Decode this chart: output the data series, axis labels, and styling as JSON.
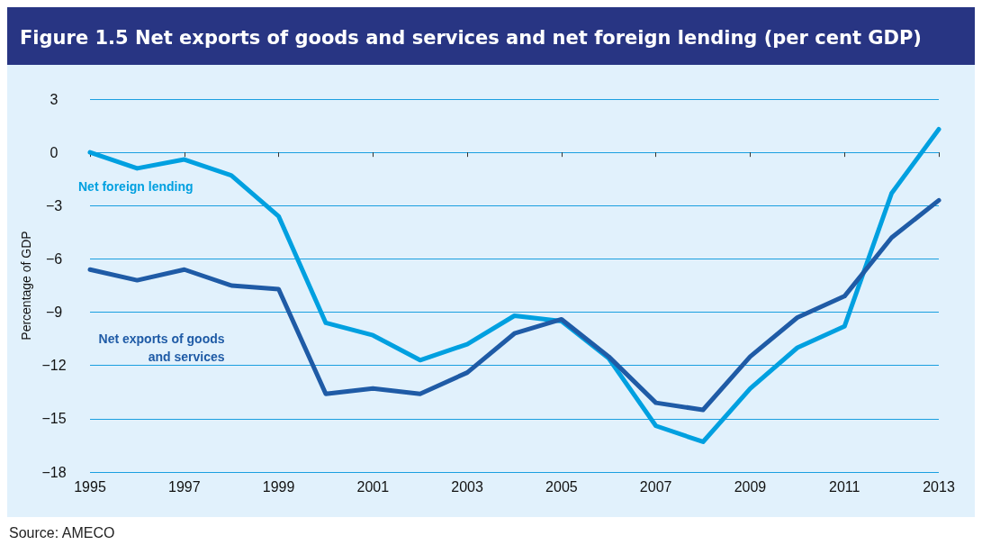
{
  "chart_data": {
    "type": "line",
    "title": "Figure 1.5  Net exports of goods and services and net foreign lending (per cent GDP)",
    "ylabel": "Percentage of GDP",
    "x": [
      1995,
      1996,
      1997,
      1998,
      1999,
      2000,
      2001,
      2002,
      2003,
      2004,
      2005,
      2006,
      2007,
      2008,
      2009,
      2010,
      2011,
      2012,
      2013
    ],
    "series": [
      {
        "name": "Net foreign lending",
        "color": "#00a0e0",
        "values": [
          0,
          -0.9,
          -0.4,
          -1.3,
          -3.6,
          -9.6,
          -10.3,
          -11.7,
          -10.8,
          -9.2,
          -9.5,
          -11.6,
          -15.4,
          -16.3,
          -13.3,
          -11.0,
          -9.8,
          -2.3,
          1.3
        ]
      },
      {
        "name": "Net exports of goods and services",
        "color": "#1f5ba6",
        "values": [
          -6.6,
          -7.2,
          -6.6,
          -7.5,
          -7.7,
          -13.6,
          -13.3,
          -13.6,
          -12.4,
          -10.2,
          -9.4,
          -11.5,
          -14.1,
          -14.5,
          -11.5,
          -9.3,
          -8.1,
          -4.8,
          -2.7
        ]
      }
    ],
    "xlim": [
      1995,
      2013
    ],
    "xticks": [
      1995,
      1997,
      1999,
      2001,
      2003,
      2005,
      2007,
      2009,
      2011,
      2013
    ],
    "ylim": [
      -18,
      3
    ],
    "yticks": [
      -18,
      -15,
      -12,
      -9,
      -6,
      -3,
      0,
      3
    ],
    "grid": "y",
    "legend": false,
    "marker": "none",
    "line_style": "solid",
    "annotations": [
      "Source: AMECO"
    ]
  }
}
